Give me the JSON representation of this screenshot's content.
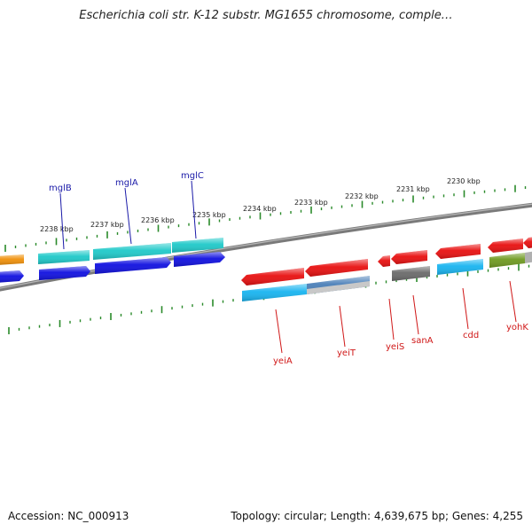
{
  "title": "Escherichia coli str. K-12 substr. MG1655 chromosome, comple…",
  "footer": {
    "accession": "Accession: NC_000913",
    "topology": "Topology: circular; Length: 4,639,675 bp; Genes: 4,255"
  },
  "scale_labels": [
    "2238 kbp",
    "2237 kbp",
    "2236 kbp",
    "2235 kbp",
    "2234 kbp",
    "2233 kbp",
    "2232 kbp",
    "2231 kbp",
    "2230 kbp"
  ],
  "genes_top": [
    "mglB",
    "mglA",
    "mglC"
  ],
  "genes_bottom": [
    "yeiA",
    "yeiT",
    "yeiS",
    "sanA",
    "cdd",
    "yohK"
  ],
  "colors": {
    "backbone": "#808080",
    "tick": "#2a8a2a",
    "cyan": "#1fc9c9",
    "blue": "#1010e0",
    "red": "#e81010",
    "skyblue": "#18b4f0",
    "steel": "#4a7fb8",
    "grey": "#6a6a6a",
    "olive": "#6e9a20",
    "orange": "#f0900a"
  }
}
